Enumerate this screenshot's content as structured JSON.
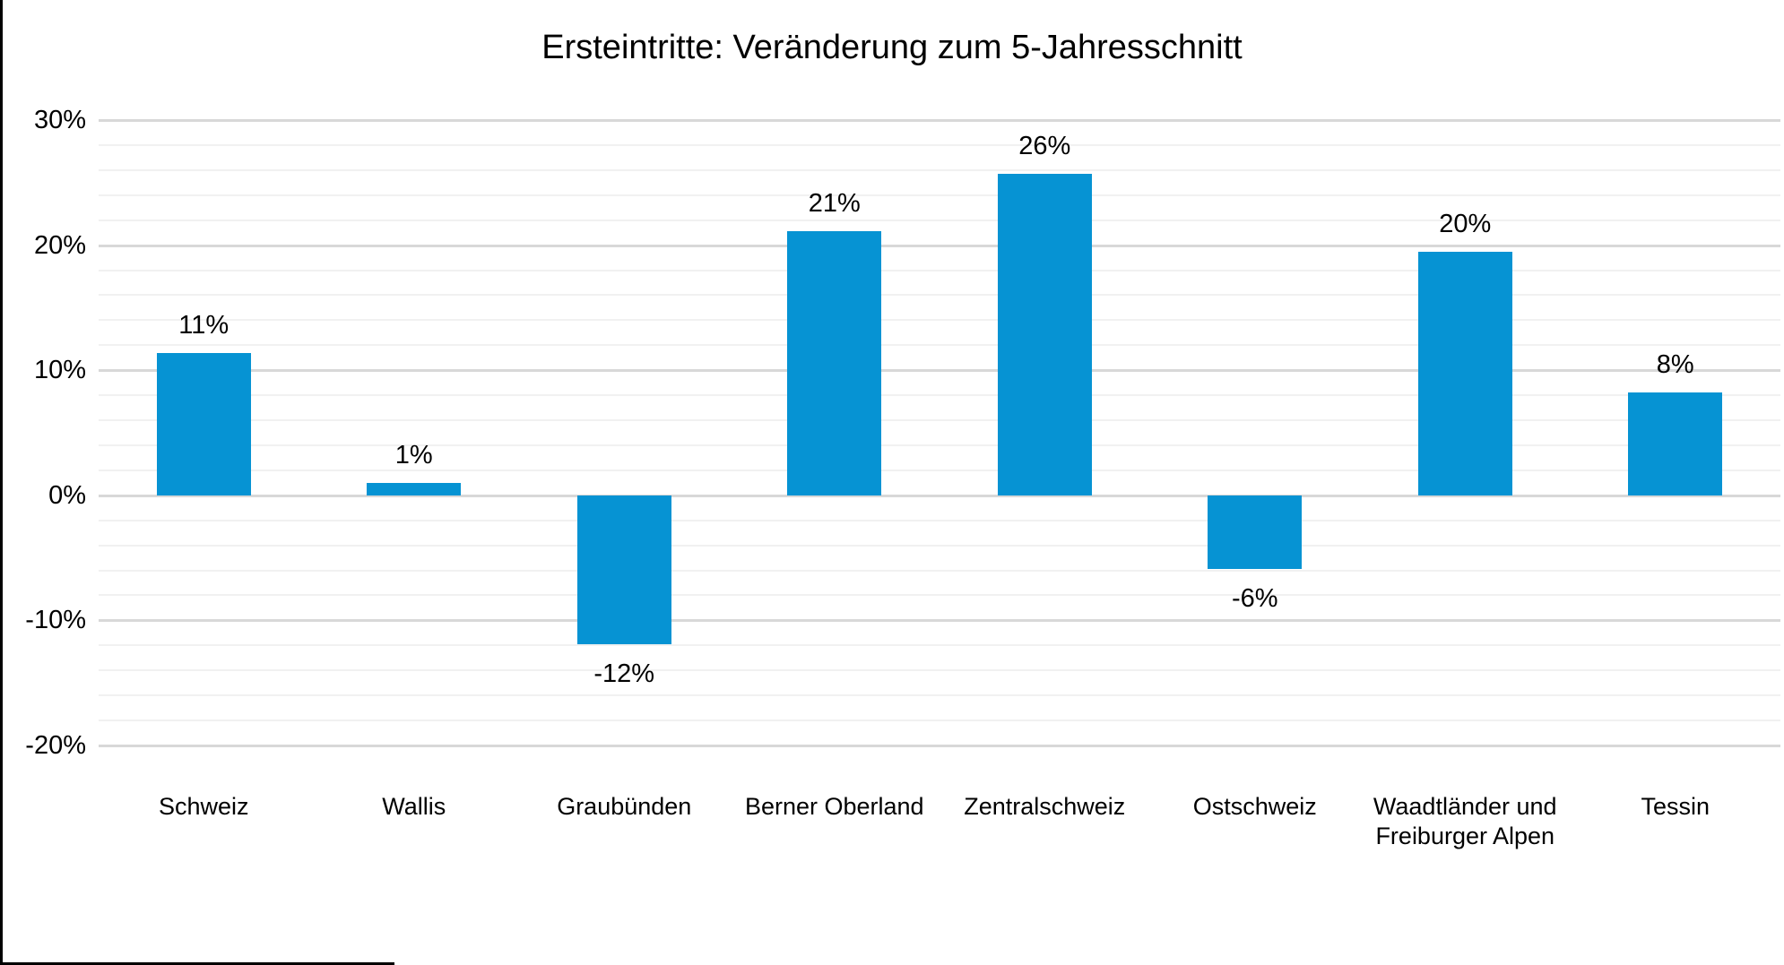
{
  "chart_data": {
    "type": "bar",
    "title": "Ersteintritte: Veränderung zum 5-Jahresschnitt",
    "categories": [
      "Schweiz",
      "Wallis",
      "Graubünden",
      "Berner Oberland",
      "Zentralschweiz",
      "Ostschweiz",
      "Waadtländer und Freiburger Alpen",
      "Tessin"
    ],
    "values": [
      11,
      1,
      -12,
      21,
      26,
      -6,
      20,
      8
    ],
    "value_labels": [
      "11%",
      "1%",
      "-12%",
      "21%",
      "26%",
      "-6%",
      "20%",
      "8%"
    ],
    "render_values": [
      11.4,
      1.0,
      -11.9,
      21.1,
      25.7,
      -5.9,
      19.5,
      8.2
    ],
    "xlabel": "",
    "ylabel": "",
    "ylim": [
      -20,
      30
    ],
    "ytick_values": [
      30,
      20,
      10,
      0,
      -10,
      -20
    ],
    "ytick_labels": [
      "30%",
      "20%",
      "10%",
      "0%",
      "-10%",
      "-20%"
    ],
    "ytick_minor_step": 2,
    "grid": true,
    "legend": "none",
    "bar_color": "#0693d3",
    "gridline_major_color": "#d8d8d8",
    "gridline_minor_color": "#f1f1f1",
    "text_color": "#000000"
  }
}
